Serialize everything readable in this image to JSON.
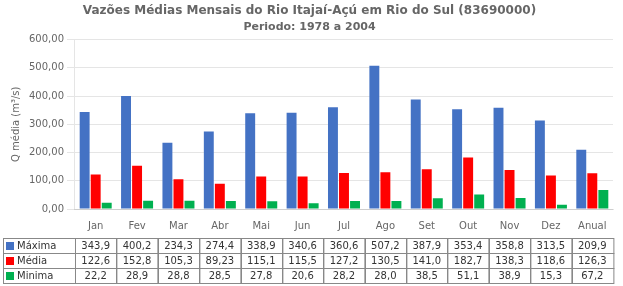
{
  "chart_data": {
    "type": "bar",
    "title": "Vazões Médias Mensais do Rio Itajaí-Açú em Rio do Sul (83690000)",
    "subtitle": "Periodo: 1978 a 2004",
    "categories": [
      "Jan",
      "Fev",
      "Mar",
      "Abr",
      "Mai",
      "Jun",
      "Jul",
      "Ago",
      "Set",
      "Out",
      "Nov",
      "Dez",
      "Anual"
    ],
    "series": [
      {
        "name": "Máxima",
        "color": "#4472C4",
        "values": [
          343.9,
          400.2,
          234.3,
          274.4,
          338.9,
          340.6,
          360.6,
          507.2,
          387.9,
          353.4,
          358.8,
          313.5,
          209.9
        ],
        "value_labels": [
          "343,9",
          "400,2",
          "234,3",
          "274,4",
          "338,9",
          "340,6",
          "360,6",
          "507,2",
          "387,9",
          "353,4",
          "358,8",
          "313,5",
          "209,9"
        ]
      },
      {
        "name": "Média",
        "color": "#FF0000",
        "values": [
          122.6,
          152.8,
          105.3,
          89.23,
          115.1,
          115.5,
          127.2,
          130.5,
          141.0,
          182.7,
          138.3,
          118.6,
          126.3
        ],
        "value_labels": [
          "122,6",
          "152,8",
          "105,3",
          "89,23",
          "115,1",
          "115,5",
          "127,2",
          "130,5",
          "141,0",
          "182,7",
          "138,3",
          "118,6",
          "126,3"
        ]
      },
      {
        "name": "Minima",
        "color": "#00B050",
        "values": [
          22.2,
          28.9,
          28.8,
          28.5,
          27.8,
          20.6,
          28.2,
          28.0,
          38.5,
          51.1,
          38.9,
          15.3,
          67.2
        ],
        "value_labels": [
          "22,2",
          "28,9",
          "28,8",
          "28,5",
          "27,8",
          "20,6",
          "28,2",
          "28,0",
          "38,5",
          "51,1",
          "38,9",
          "15,3",
          "67,2"
        ]
      }
    ],
    "ylabel": "Q média (m³/s)",
    "ylim": [
      0,
      600
    ],
    "yticks": [
      {
        "value": 0,
        "label": "0,00"
      },
      {
        "value": 100,
        "label": "100,00"
      },
      {
        "value": 200,
        "label": "200,00"
      },
      {
        "value": 300,
        "label": "300,00"
      },
      {
        "value": 400,
        "label": "400,00"
      },
      {
        "value": 500,
        "label": "500,00"
      },
      {
        "value": 600,
        "label": "600,00"
      }
    ],
    "grid": true
  }
}
